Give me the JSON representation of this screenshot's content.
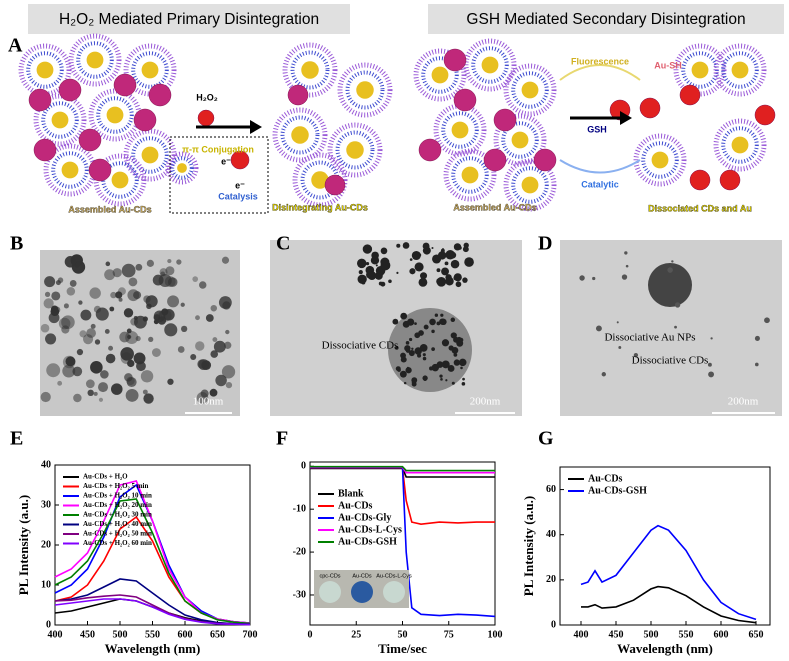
{
  "panel_labels": [
    "A",
    "B",
    "C",
    "D",
    "E",
    "F",
    "G"
  ],
  "scheme": {
    "left_title": "H₂O₂ Mediated Primary Disintegration",
    "right_title": "GSH Mediated Secondary Disintegration",
    "assembled_left": "Assembled Au-CDs",
    "reagent": "H₂O₂",
    "conjugation": "π-π Conjugation",
    "electron_1": "e⁻",
    "electron_2": "e⁻",
    "catalysis": "Catalysis",
    "disintegrating": "Disintegrating Au-CDs",
    "assembled_right": "Assembled Au-CDs",
    "fluorescence": "Fluorescence",
    "gsh": "GSH",
    "catalytic": "Catalytic",
    "au_sh": "Au-SH",
    "dissociated": "Dissociated CDs and Au"
  },
  "tem": {
    "b_scale": "100nm",
    "c_label": "Dissociative CDs",
    "c_scale": "200nm",
    "d_label_1": "Dissociative Au NPs",
    "d_label_2": "Dissociative CDs",
    "d_scale": "200nm"
  },
  "chart_data": [
    {
      "type": "line",
      "x_label": "Wavelength (nm)",
      "y_label": "PL Intensity (a.u.)",
      "x": [
        400,
        425,
        450,
        475,
        500,
        525,
        550,
        575,
        600,
        625,
        650,
        675,
        700
      ],
      "xlim": [
        400,
        700
      ],
      "xticks": [
        400,
        450,
        500,
        550,
        600,
        650,
        700
      ],
      "ylim": [
        0,
        40
      ],
      "yticks": [
        0,
        10,
        20,
        30,
        40
      ],
      "legend": "upper left",
      "series": [
        {
          "name": "Au-CDs + H₂O",
          "color": "#000000",
          "values": [
            3,
            3.5,
            4.5,
            5.5,
            6.5,
            6,
            4.5,
            3,
            1.8,
            1,
            0.5,
            0.3,
            0.2
          ]
        },
        {
          "name": "Au-CDs + H₂O₂ 5 min",
          "color": "#ff0000",
          "values": [
            6,
            7,
            10,
            16,
            24,
            27,
            21,
            12,
            6,
            3,
            1.5,
            0.8,
            0.5
          ]
        },
        {
          "name": "Au-CDs + H₂O₂ 10 min",
          "color": "#0000ff",
          "values": [
            8,
            10,
            14,
            22,
            32,
            35,
            26,
            15,
            7,
            3.5,
            1.5,
            0.8,
            0.5
          ]
        },
        {
          "name": "Au-CDs + H₂O₂ 20 min",
          "color": "#ff00ff",
          "values": [
            12,
            14,
            18,
            26,
            35,
            36,
            26,
            14,
            7,
            3,
            1.5,
            0.8,
            0.5
          ]
        },
        {
          "name": "Au-CDs + H₂O₂ 30 min",
          "color": "#008000",
          "values": [
            10,
            12,
            16,
            23,
            31,
            31.5,
            23,
            13,
            6,
            3,
            1.3,
            0.7,
            0.4
          ]
        },
        {
          "name": "Au-CDs + H₂O₂ 40 min",
          "color": "#000080",
          "values": [
            6,
            6.5,
            7.5,
            9.5,
            11.5,
            11,
            8,
            5,
            2.5,
            1.3,
            0.6,
            0.3,
            0.2
          ]
        },
        {
          "name": "Au-CDs + H₂O₂ 50 min",
          "color": "#800080",
          "values": [
            6,
            6.2,
            6.8,
            7.2,
            7.5,
            7,
            5,
            3,
            1.6,
            0.8,
            0.4,
            0.2,
            0.1
          ]
        },
        {
          "name": "Au-CDs + H₂O₂ 60 min",
          "color": "#8000ff",
          "values": [
            5,
            5.5,
            6,
            6.5,
            6.5,
            6,
            4.5,
            2.7,
            1.4,
            0.7,
            0.3,
            0.2,
            0.1
          ]
        }
      ]
    },
    {
      "type": "line",
      "x_label": "Time/sec",
      "x": [
        0,
        10,
        20,
        30,
        40,
        50,
        52,
        55,
        60,
        70,
        80,
        90,
        100
      ],
      "xlim": [
        0,
        100
      ],
      "xticks": [
        0,
        25,
        50,
        75,
        100
      ],
      "ylim": [
        -37,
        1
      ],
      "yticks": [
        0,
        -10,
        -20,
        -30
      ],
      "legend": "center left",
      "inset_labels": [
        "cpc-CDs",
        "Au-CDs",
        "Au-CDs-L-Cys"
      ],
      "series": [
        {
          "name": "Blank",
          "color": "#000000",
          "values": [
            -0.5,
            -0.5,
            -0.5,
            -0.5,
            -0.5,
            -0.5,
            -2.5,
            -2.5,
            -2.5,
            -2.5,
            -2.5,
            -2.5,
            -2.5
          ]
        },
        {
          "name": "Au-CDs",
          "color": "#ff0000",
          "values": [
            -0.4,
            -0.4,
            -0.4,
            -0.4,
            -0.4,
            -0.4,
            -8,
            -13,
            -13.5,
            -13,
            -13.2,
            -13,
            -13
          ]
        },
        {
          "name": "Au-CDs-Gly",
          "color": "#0000ff",
          "values": [
            -0.3,
            -0.3,
            -0.3,
            -0.3,
            -0.3,
            -0.3,
            -20,
            -33,
            -34.5,
            -34.8,
            -34.5,
            -34.7,
            -35
          ]
        },
        {
          "name": "Au-CDs-L-Cys",
          "color": "#ff00ff",
          "values": [
            -0.2,
            -0.2,
            -0.2,
            -0.2,
            -0.2,
            -0.2,
            -1.5,
            -1.5,
            -1.5,
            -1.5,
            -1.5,
            -1.5,
            -1.5
          ]
        },
        {
          "name": "Au-CDs-GSH",
          "color": "#008000",
          "values": [
            -0.1,
            -0.1,
            -0.1,
            -0.1,
            -0.1,
            -0.1,
            -1,
            -1,
            -1,
            -1,
            -1,
            -1,
            -1
          ]
        }
      ]
    },
    {
      "type": "line",
      "x_label": "Wavelength (nm)",
      "y_label": "PL Intensity (a.u.)",
      "x": [
        400,
        410,
        420,
        430,
        450,
        475,
        500,
        510,
        525,
        550,
        575,
        600,
        625,
        650
      ],
      "xlim": [
        370,
        670
      ],
      "xticks": [
        400,
        450,
        500,
        550,
        600,
        650
      ],
      "ylim": [
        0,
        70
      ],
      "yticks": [
        0,
        20,
        40,
        60
      ],
      "legend": "upper left",
      "series": [
        {
          "name": "Au-CDs",
          "color": "#000000",
          "values": [
            8,
            8,
            9,
            7.5,
            8,
            11,
            16,
            17,
            16.5,
            13,
            8,
            4,
            2,
            1
          ]
        },
        {
          "name": "Au-CDs-GSH",
          "color": "#0000ff",
          "values": [
            18,
            19,
            24,
            19,
            22,
            32,
            42,
            44,
            42,
            33,
            20,
            10,
            5,
            2.5
          ]
        }
      ]
    }
  ]
}
